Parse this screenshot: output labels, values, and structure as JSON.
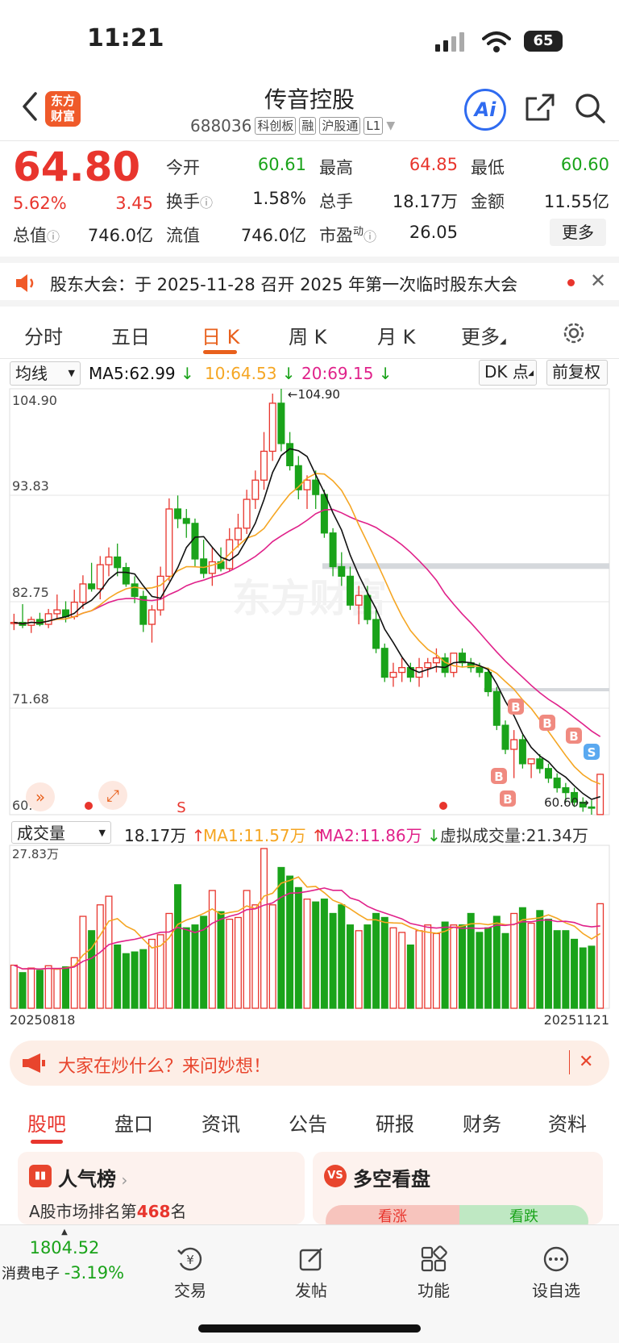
{
  "status_bar": {
    "time": "11:21",
    "battery": "65"
  },
  "header": {
    "logo_text_1": "东方",
    "logo_text_2": "财富",
    "stock_name": "传音控股",
    "stock_code": "688036",
    "tags": [
      "科创板",
      "融",
      "沪股通",
      "L1"
    ],
    "ai_label": "Ai"
  },
  "quote": {
    "price": "64.80",
    "change_pct": "5.62%",
    "change_amt": "3.45",
    "open_label": "今开",
    "open": "60.61",
    "high_label": "最高",
    "high": "64.85",
    "low_label": "最低",
    "low": "60.60",
    "turnover_label": "换手",
    "turnover": "1.58%",
    "volume_label": "总手",
    "volume": "18.17万",
    "amount_label": "金额",
    "amount": "11.55亿",
    "mktcap_label": "总值",
    "mktcap": "746.0亿",
    "float_label": "流值",
    "float_cap": "746.0亿",
    "pe_label": "市盈",
    "pe_sup": "动",
    "pe": "26.05",
    "more_label": "更多"
  },
  "notice": {
    "text": "股东大会：于 2025-11-28 召开 2025 年第一次临时股东大会"
  },
  "chart_tabs": [
    "分时",
    "五日",
    "日 K",
    "周 K",
    "月 K",
    "更多"
  ],
  "indicators": {
    "ma_selector": "均线",
    "ma5": "MA5:62.99",
    "ma10": "10:64.53",
    "ma20": "20:69.15",
    "dk_button": "DK 点",
    "adjust_button": "前复权"
  },
  "volume_indicators": {
    "selector": "成交量",
    "vol": "18.17万",
    "ma1": "MA1:11.57万",
    "ma2": "MA2:11.86万",
    "virtual": "虚拟成交量:21.34万"
  },
  "colors": {
    "up": "#e8352d",
    "down": "#1aa31a",
    "ma5": "#111111",
    "ma10": "#f5a623",
    "ma20": "#e0218a",
    "accent": "#e8601c"
  },
  "chart_data": {
    "type": "candlestick",
    "y_ticks": [
      "104.90",
      "93.83",
      "82.75",
      "71.68",
      "60.60"
    ],
    "ylim": [
      60.6,
      104.9
    ],
    "max_label": "104.90",
    "min_label": "60.60",
    "x_start": "20250818",
    "x_end": "20251121",
    "volume_max_label": "27.83万",
    "candles": [
      [
        80.5,
        81.5,
        79.8,
        80.6
      ],
      [
        80.6,
        82.5,
        80.0,
        80.3
      ],
      [
        80.3,
        81.2,
        79.5,
        80.9
      ],
      [
        80.9,
        81.6,
        80.2,
        80.4
      ],
      [
        80.4,
        82.0,
        80.0,
        81.5
      ],
      [
        81.5,
        83.5,
        81.0,
        81.9
      ],
      [
        81.9,
        82.8,
        80.6,
        81.2
      ],
      [
        81.2,
        84.0,
        80.9,
        82.7
      ],
      [
        82.7,
        85.5,
        82.0,
        84.6
      ],
      [
        84.6,
        86.8,
        83.8,
        84.1
      ],
      [
        84.1,
        87.5,
        83.0,
        86.6
      ],
      [
        86.6,
        88.4,
        85.4,
        87.4
      ],
      [
        87.4,
        88.8,
        85.4,
        86.3
      ],
      [
        86.3,
        86.8,
        84.3,
        84.6
      ],
      [
        84.6,
        85.4,
        82.6,
        83.3
      ],
      [
        83.3,
        83.9,
        79.6,
        80.4
      ],
      [
        80.4,
        82.4,
        78.5,
        81.9
      ],
      [
        81.9,
        86.4,
        81.3,
        85.4
      ],
      [
        85.4,
        93.5,
        84.9,
        92.4
      ],
      [
        92.4,
        93.8,
        90.4,
        91.4
      ],
      [
        91.4,
        92.4,
        89.4,
        90.9
      ],
      [
        90.9,
        91.4,
        86.4,
        87.2
      ],
      [
        87.2,
        89.2,
        85.2,
        85.7
      ],
      [
        85.7,
        88.4,
        84.4,
        86.9
      ],
      [
        86.9,
        88.4,
        85.9,
        86.2
      ],
      [
        86.2,
        90.4,
        85.9,
        89.2
      ],
      [
        89.2,
        91.9,
        88.4,
        90.4
      ],
      [
        90.4,
        94.4,
        89.8,
        93.4
      ],
      [
        93.4,
        96.4,
        92.4,
        95.4
      ],
      [
        95.4,
        100.4,
        94.4,
        98.4
      ],
      [
        98.4,
        104.4,
        97.4,
        103.4
      ],
      [
        103.4,
        104.9,
        98.4,
        99.2
      ],
      [
        99.2,
        100.4,
        96.4,
        96.9
      ],
      [
        96.9,
        97.9,
        93.4,
        94.4
      ],
      [
        94.4,
        95.9,
        92.4,
        95.4
      ],
      [
        95.4,
        96.4,
        92.4,
        93.9
      ],
      [
        93.9,
        94.4,
        89.4,
        89.9
      ],
      [
        89.9,
        90.4,
        85.4,
        86.4
      ],
      [
        86.4,
        87.9,
        84.4,
        85.4
      ],
      [
        85.4,
        86.4,
        81.9,
        82.4
      ],
      [
        82.4,
        84.4,
        80.4,
        83.4
      ],
      [
        83.4,
        84.4,
        80.4,
        80.9
      ],
      [
        80.9,
        81.9,
        77.4,
        77.9
      ],
      [
        77.9,
        78.4,
        74.4,
        74.9
      ],
      [
        74.9,
        76.4,
        73.9,
        75.4
      ],
      [
        75.4,
        76.9,
        74.4,
        75.9
      ],
      [
        75.9,
        76.4,
        74.4,
        74.9
      ],
      [
        74.9,
        76.9,
        73.9,
        75.9
      ],
      [
        75.9,
        76.9,
        74.9,
        76.4
      ],
      [
        76.4,
        77.9,
        75.4,
        76.9
      ],
      [
        76.9,
        77.4,
        74.9,
        75.4
      ],
      [
        75.4,
        77.4,
        74.9,
        77.4
      ],
      [
        77.4,
        77.9,
        75.9,
        76.4
      ],
      [
        76.4,
        76.9,
        75.4,
        75.9
      ],
      [
        75.9,
        76.4,
        74.9,
        75.4
      ],
      [
        75.4,
        75.9,
        72.9,
        73.4
      ],
      [
        73.4,
        73.9,
        69.4,
        69.9
      ],
      [
        69.9,
        70.4,
        66.9,
        67.4
      ],
      [
        67.4,
        69.4,
        64.4,
        68.4
      ],
      [
        68.4,
        68.9,
        65.4,
        65.9
      ],
      [
        65.9,
        66.4,
        64.4,
        66.4
      ],
      [
        66.4,
        66.9,
        64.9,
        65.4
      ],
      [
        65.4,
        65.9,
        63.9,
        64.4
      ],
      [
        64.4,
        64.9,
        62.9,
        63.4
      ],
      [
        63.4,
        63.9,
        61.9,
        62.9
      ],
      [
        62.9,
        63.4,
        61.4,
        61.9
      ],
      [
        61.9,
        62.4,
        60.9,
        61.4
      ],
      [
        61.4,
        62.1,
        60.6,
        61.35
      ],
      [
        60.61,
        64.85,
        60.6,
        64.8
      ]
    ],
    "volumes": [
      7.5,
      6.2,
      7.0,
      6.6,
      7.4,
      6.8,
      7.2,
      8.8,
      16.0,
      13.5,
      18.0,
      19.5,
      11.0,
      9.5,
      9.8,
      10.2,
      12.0,
      12.8,
      16.5,
      21.5,
      14.0,
      14.5,
      16.0,
      20.5,
      16.8,
      15.5,
      15.8,
      20.5,
      18.0,
      27.8,
      18.0,
      24.5,
      23.0,
      21.0,
      19.0,
      18.5,
      19.0,
      16.5,
      18.0,
      14.5,
      13.5,
      14.5,
      16.5,
      15.8,
      14.0,
      13.2,
      11.0,
      13.5,
      14.5,
      13.0,
      15.0,
      14.5,
      14.5,
      16.5,
      13.2,
      14.0,
      16.0,
      13.0,
      16.5,
      17.5,
      14.8,
      17.0,
      15.5,
      13.5,
      13.5,
      12.0,
      10.5,
      10.8,
      18.2
    ]
  },
  "ad": {
    "text": "大家在炒什么？来问妙想！"
  },
  "bottom_tabs": [
    "股吧",
    "盘口",
    "资讯",
    "公告",
    "研报",
    "财务",
    "资料"
  ],
  "cards": {
    "popularity_title": "人气榜",
    "popularity_sub_prefix": "A股市场排名第",
    "popularity_rank": "468",
    "popularity_sub_suffix": "名",
    "longshort_title": "多空看盘",
    "bull_label": "看涨",
    "bear_label": "看跌"
  },
  "bottom_nav": {
    "index_value": "1804.52",
    "index_name": "消费电子",
    "index_change": "-3.19%",
    "trade": "交易",
    "post": "发帖",
    "function": "功能",
    "watchlist": "设自选"
  }
}
